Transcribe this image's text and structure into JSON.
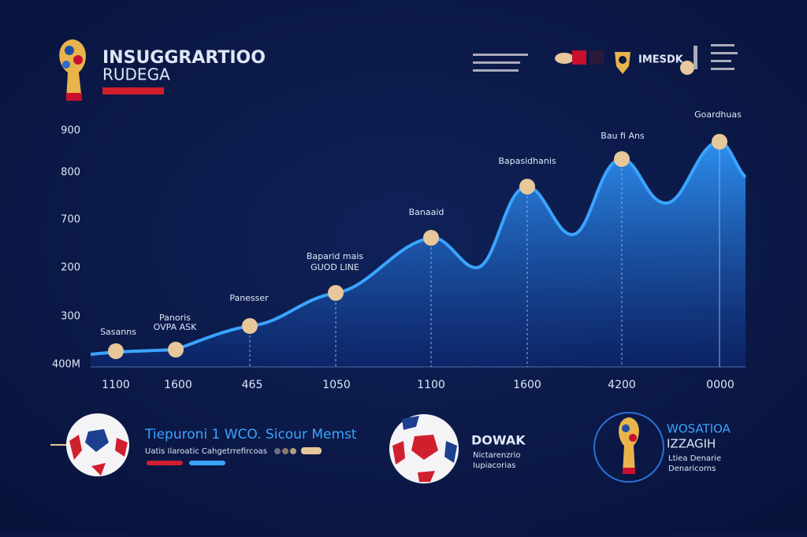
{
  "header": {
    "title": [
      "INSUGGRARTIOO",
      "RUDEGA"
    ],
    "badge": "IMESDK"
  },
  "axis": {
    "y_labels": [
      "900",
      "800",
      "700",
      "200",
      "300",
      "400M"
    ],
    "x_labels": [
      "1100",
      "1600",
      "465",
      "1050",
      "1100",
      "1600",
      "4200",
      "0000"
    ]
  },
  "points": [
    {
      "label": [
        "Sasanns"
      ]
    },
    {
      "label": [
        "Panoris",
        "OVPA ASK"
      ]
    },
    {
      "label": [
        "Panesser"
      ]
    },
    {
      "label": [
        "Baparid mais",
        "GUOD LINE"
      ]
    },
    {
      "label": [
        "Banaaid"
      ]
    },
    {
      "label": [
        "Bapasidhanis"
      ]
    },
    {
      "label": [
        "Bau fi Ans"
      ]
    },
    {
      "label": [
        "Goardhuas"
      ]
    }
  ],
  "footer": {
    "left": {
      "title": "Tiepuroni 1 WCO. Sicour Memst",
      "text": "Uatis Ilaroatic Cahgetrrefircoas"
    },
    "middle": {
      "title": "DOWAK",
      "text": [
        "Nictarenzrio",
        "Iupiacorias"
      ]
    },
    "right": {
      "title": [
        "WOSATIOA",
        "IZZAGIH"
      ],
      "text": [
        "Ltiea Denarie",
        "Denaricorns"
      ]
    }
  }
}
